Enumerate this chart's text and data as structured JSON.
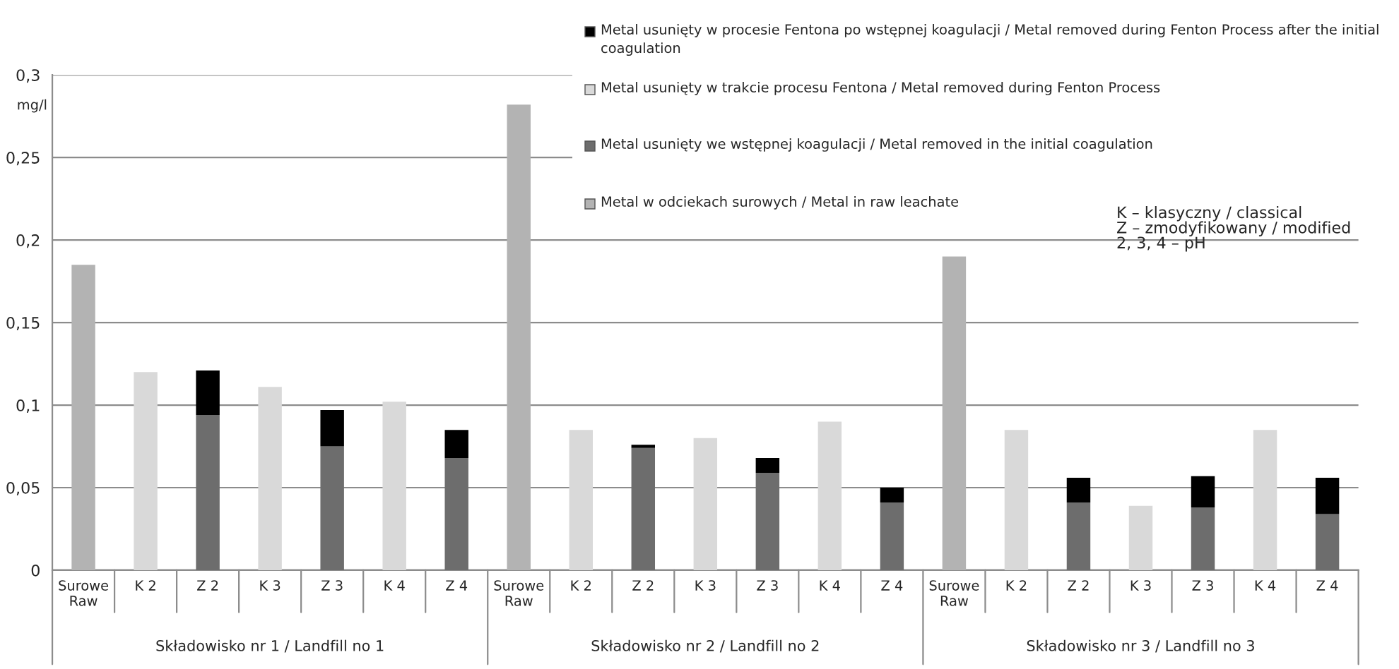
{
  "chart_data": {
    "type": "bar",
    "stacked": true,
    "ylabel": "mg/l",
    "categories": [
      "Surowe\nRaw",
      "K 2",
      "Z 2",
      "K 3",
      "Z 3",
      "K 4",
      "Z 4",
      "Surowe\nRaw",
      "K 2",
      "Z 2",
      "K 3",
      "Z 3",
      "K 4",
      "Z 4",
      "Surowe\nRaw",
      "K 2",
      "Z 2",
      "K 3",
      "Z 3",
      "K 4",
      "Z 4"
    ],
    "series": [
      {
        "name": "Metal w odciekach surowych / Metal in raw leachate",
        "color": "#b3b3b3",
        "values": [
          0.185,
          null,
          null,
          null,
          null,
          null,
          null,
          0.282,
          null,
          null,
          null,
          null,
          null,
          null,
          0.19,
          null,
          null,
          null,
          null,
          null,
          null
        ]
      },
      {
        "name": "Metal usunięty we wstępnej koagulacji / Metal removed in the initial coagulation",
        "color": "#6d6d6d",
        "values": [
          null,
          null,
          0.094,
          null,
          0.075,
          null,
          0.068,
          null,
          null,
          0.074,
          null,
          0.059,
          null,
          0.041,
          null,
          null,
          0.041,
          null,
          0.038,
          null,
          0.034
        ]
      },
      {
        "name": "Metal usunięty w trakcie procesu Fentona / Metal removed during Fenton Process",
        "color": "#d9d9d9",
        "values": [
          null,
          0.12,
          null,
          0.111,
          null,
          0.102,
          null,
          null,
          0.085,
          null,
          0.08,
          null,
          0.09,
          null,
          null,
          0.085,
          null,
          0.039,
          null,
          0.085,
          null
        ]
      },
      {
        "name": "Metal usunięty w procesie Fentona po wstępnej koagulacji / Metal removed during Fenton Process after the initial coagulation",
        "color": "#000000",
        "values": [
          null,
          null,
          0.027,
          null,
          0.022,
          null,
          0.017,
          null,
          null,
          0.002,
          null,
          0.009,
          null,
          0.009,
          null,
          null,
          0.015,
          null,
          0.019,
          null,
          0.022
        ]
      }
    ],
    "ylim": [
      0,
      0.3
    ],
    "yticks": [
      0,
      {
        "value": 0.05,
        "label": "0,05"
      },
      {
        "value": 0.1,
        "label": "0,1"
      },
      {
        "value": 0.15,
        "label": "0,15"
      },
      {
        "value": 0.2,
        "label": "0,2"
      },
      {
        "value": 0.25,
        "label": "0,25"
      },
      {
        "value": 0.3,
        "label": "0,3"
      }
    ],
    "grid": "y",
    "legend": "top right",
    "annotations": [
      "Składowisko nr 1 / Landfill no 1",
      "Składowisko nr 2 / Landfill no 2",
      "Składowisko nr 3 / Landfill no 3",
      "K – klasyczny / classical\nZ – zmodyfikowany / modified\n2, 3, 4 – pH"
    ]
  }
}
